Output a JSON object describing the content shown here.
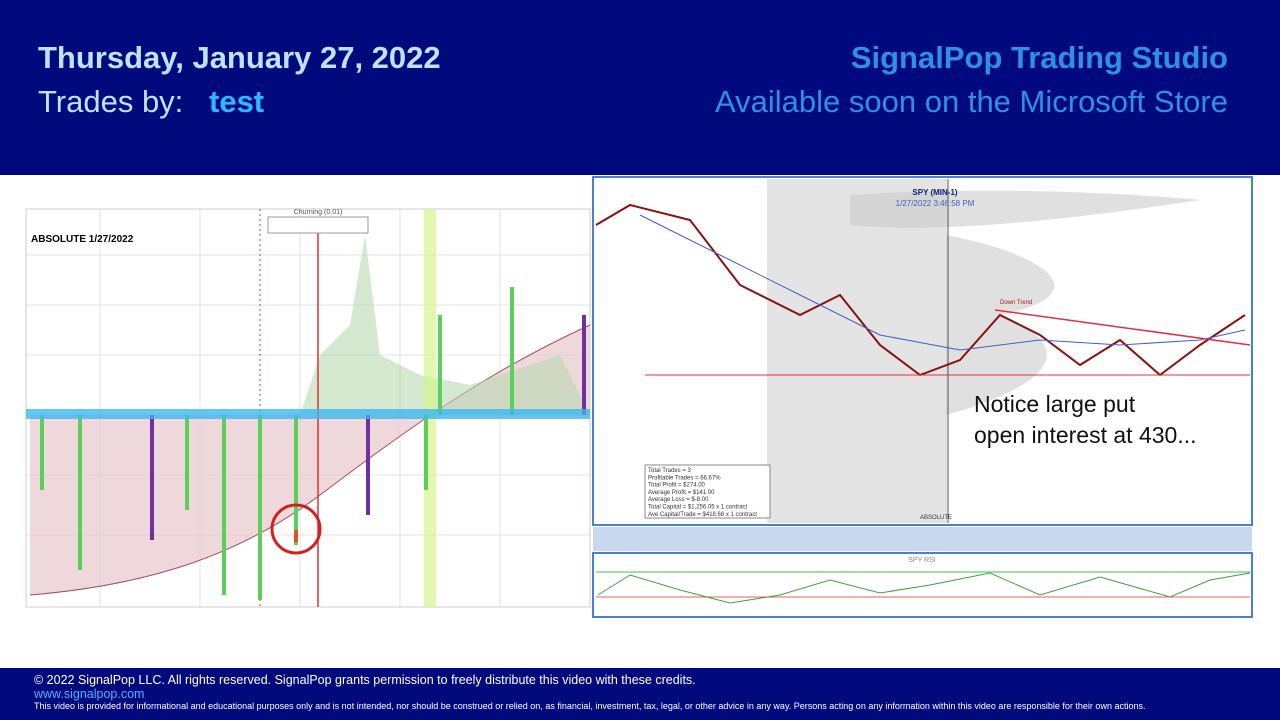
{
  "header": {
    "date": "Thursday, January 27, 2022",
    "trades_label": "Trades by:",
    "trader": "test",
    "brand": "SignalPop Trading Studio",
    "tagline": "Available soon on the Microsoft Store"
  },
  "left_chart": {
    "title": "ABSOLUTE 1/27/2022",
    "indicator": "Churning (0.01)"
  },
  "right_chart": {
    "symbol": "SPY (MIN-1)",
    "timestamp": "1/27/2022 3:46:58 PM",
    "trend_label": "Down Trend",
    "bottom_label": "ABSOLUTE",
    "rsi_label": "SPY RSI",
    "stats": [
      "Total Trades = 3",
      "Profitable Trades = 66.67%",
      "Total Profit = $274.00",
      "Average Profit = $141.00",
      "Average Loss = $-8.00",
      "Total Capital = $1,256.05 x 1 contract",
      "Ave Capital/Trade = $418.68 x 1 contract"
    ],
    "annotation": [
      "Notice large put",
      "open  interest at 430..."
    ]
  },
  "footer": {
    "copyright": "© 2022 SignalPop LLC. All rights reserved.  SignalPop grants permission to freely distribute this video with these credits.",
    "url": "www.signalpop.com",
    "disclaimer": "This video is provided for informational and educational purposes only and is not intended, nor should be construed or relied on, as financial, investment, tax, legal, or other advice in any way.  Persons acting on any information within this video are responsible for their own actions."
  }
}
